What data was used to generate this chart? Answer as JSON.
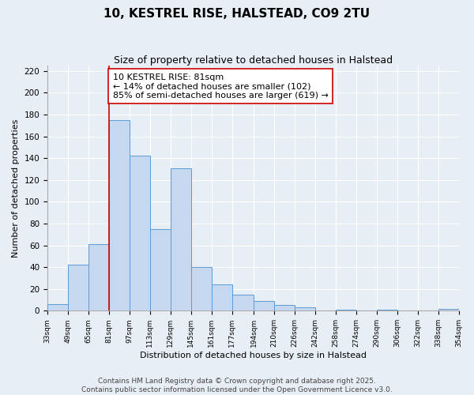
{
  "title": "10, KESTREL RISE, HALSTEAD, CO9 2TU",
  "subtitle": "Size of property relative to detached houses in Halstead",
  "xlabel": "Distribution of detached houses by size in Halstead",
  "ylabel": "Number of detached properties",
  "bin_edges": [
    33,
    49,
    65,
    81,
    97,
    113,
    129,
    145,
    161,
    177,
    194,
    210,
    226,
    242,
    258,
    274,
    290,
    306,
    322,
    338,
    354
  ],
  "bar_heights": [
    6,
    42,
    61,
    175,
    142,
    75,
    131,
    40,
    24,
    15,
    9,
    5,
    3,
    0,
    1,
    0,
    1,
    0,
    0,
    2
  ],
  "bar_color": "#c5d8f0",
  "bar_edge_color": "#5b9bd5",
  "vline_x": 81,
  "vline_color": "#cc0000",
  "annotation_line1": "10 KESTREL RISE: 81sqm",
  "annotation_line2": "← 14% of detached houses are smaller (102)",
  "annotation_line3": "85% of semi-detached houses are larger (619) →",
  "annotation_box_edge_color": "#cc0000",
  "annotation_box_face_color": "#ffffff",
  "ylim": [
    0,
    225
  ],
  "yticks": [
    0,
    20,
    40,
    60,
    80,
    100,
    120,
    140,
    160,
    180,
    200,
    220
  ],
  "tick_labels": [
    "33sqm",
    "49sqm",
    "65sqm",
    "81sqm",
    "97sqm",
    "113sqm",
    "129sqm",
    "145sqm",
    "161sqm",
    "177sqm",
    "194sqm",
    "210sqm",
    "226sqm",
    "242sqm",
    "258sqm",
    "274sqm",
    "290sqm",
    "306sqm",
    "322sqm",
    "338sqm",
    "354sqm"
  ],
  "background_color": "#e8eef5",
  "plot_bg_color": "#e8eef5",
  "footer_text": "Contains HM Land Registry data © Crown copyright and database right 2025.\nContains public sector information licensed under the Open Government Licence v3.0.",
  "title_fontsize": 11,
  "subtitle_fontsize": 9,
  "annotation_fontsize": 8,
  "footer_fontsize": 6.5
}
